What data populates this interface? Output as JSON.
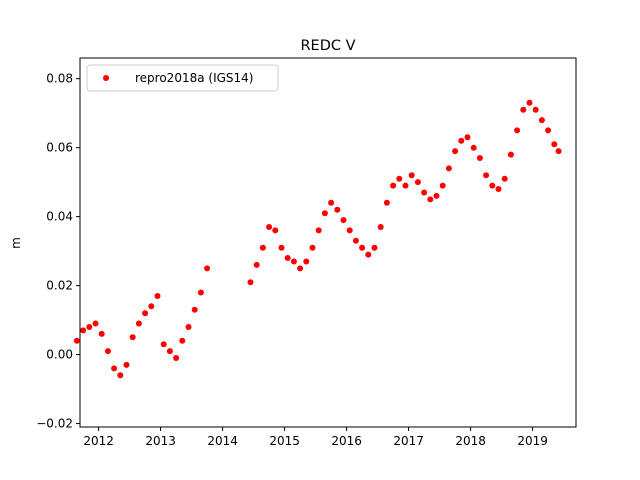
{
  "chart_data": {
    "type": "scatter",
    "title": "REDC V",
    "xlabel": "",
    "ylabel": "m",
    "xlim": [
      2011.7,
      2019.7
    ],
    "ylim": [
      -0.021,
      0.086
    ],
    "xticks": [
      2012,
      2013,
      2014,
      2015,
      2016,
      2017,
      2018,
      2019
    ],
    "yticks": [
      -0.02,
      0.0,
      0.02,
      0.04,
      0.06,
      0.08
    ],
    "ytick_labels": [
      "−0.02",
      "0.00",
      "0.02",
      "0.04",
      "0.06",
      "0.08"
    ],
    "grid": false,
    "legend_position": "top-left",
    "series": [
      {
        "name": "repro2018a (IGS14)",
        "color": "#ff0000",
        "marker": "circle",
        "x": [
          2011.65,
          2011.75,
          2011.85,
          2011.95,
          2012.05,
          2012.15,
          2012.25,
          2012.35,
          2012.45,
          2012.55,
          2012.65,
          2012.75,
          2012.85,
          2012.95,
          2013.05,
          2013.15,
          2013.25,
          2013.35,
          2013.45,
          2013.55,
          2013.65,
          2013.75,
          2014.45,
          2014.55,
          2014.65,
          2014.75,
          2014.85,
          2014.95,
          2015.05,
          2015.15,
          2015.25,
          2015.35,
          2015.45,
          2015.55,
          2015.65,
          2015.75,
          2015.85,
          2015.95,
          2016.05,
          2016.15,
          2016.25,
          2016.35,
          2016.45,
          2016.55,
          2016.65,
          2016.75,
          2016.85,
          2016.95,
          2017.05,
          2017.15,
          2017.25,
          2017.35,
          2017.45,
          2017.55,
          2017.65,
          2017.75,
          2017.85,
          2017.95,
          2018.05,
          2018.15,
          2018.25,
          2018.35,
          2018.45,
          2018.55,
          2018.65,
          2018.75,
          2018.85,
          2018.95,
          2019.05,
          2019.15,
          2019.25,
          2019.35,
          2019.42
        ],
        "y": [
          0.004,
          0.007,
          0.008,
          0.009,
          0.006,
          0.001,
          -0.004,
          -0.006,
          -0.003,
          0.005,
          0.009,
          0.012,
          0.014,
          0.017,
          0.003,
          0.001,
          -0.001,
          0.004,
          0.008,
          0.013,
          0.018,
          0.025,
          0.021,
          0.026,
          0.031,
          0.037,
          0.036,
          0.031,
          0.028,
          0.027,
          0.025,
          0.027,
          0.031,
          0.036,
          0.041,
          0.044,
          0.042,
          0.039,
          0.036,
          0.033,
          0.031,
          0.029,
          0.031,
          0.037,
          0.044,
          0.049,
          0.051,
          0.049,
          0.052,
          0.05,
          0.047,
          0.045,
          0.046,
          0.049,
          0.054,
          0.059,
          0.062,
          0.063,
          0.06,
          0.057,
          0.052,
          0.049,
          0.048,
          0.051,
          0.058,
          0.065,
          0.071,
          0.073,
          0.071,
          0.068,
          0.065,
          0.061,
          0.059
        ]
      }
    ]
  }
}
